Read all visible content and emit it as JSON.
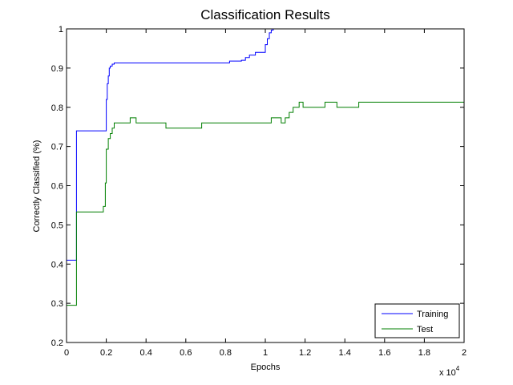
{
  "chart_data": {
    "type": "line",
    "title": "Classification Results",
    "xlabel": "Epochs",
    "ylabel": "Correctly Classified (%)",
    "x_exponent_label": "x 10",
    "x_exponent_power": "4",
    "xlim": [
      0,
      20000
    ],
    "ylim": [
      0.2,
      1
    ],
    "x_ticks": [
      0,
      2000,
      4000,
      6000,
      8000,
      10000,
      12000,
      14000,
      16000,
      18000,
      20000
    ],
    "x_tick_labels": [
      "0",
      "0.2",
      "0.4",
      "0.6",
      "0.8",
      "1",
      "1.2",
      "1.4",
      "1.6",
      "1.8",
      "2"
    ],
    "y_ticks": [
      0.2,
      0.3,
      0.4,
      0.5,
      0.6,
      0.7,
      0.8,
      0.9,
      1
    ],
    "y_tick_labels": [
      "0.2",
      "0.3",
      "0.4",
      "0.5",
      "0.6",
      "0.7",
      "0.8",
      "0.9",
      "1"
    ],
    "grid": false,
    "legend_position": "bottom-right",
    "step": true,
    "series": [
      {
        "name": "Training",
        "color": "#0000ff",
        "x": [
          0,
          500,
          1950,
          2000,
          2050,
          2100,
          2150,
          2200,
          2300,
          2400,
          8200,
          8800,
          9000,
          9200,
          9500,
          10000,
          10100,
          10200,
          10300,
          10400
        ],
        "y": [
          0.41,
          0.74,
          0.74,
          0.82,
          0.86,
          0.88,
          0.9,
          0.905,
          0.91,
          0.913,
          0.918,
          0.92,
          0.927,
          0.933,
          0.94,
          0.96,
          0.975,
          0.99,
          0.997,
          1.0
        ]
      },
      {
        "name": "Test",
        "color": "#007f00",
        "x": [
          0,
          500,
          1850,
          1950,
          2000,
          2100,
          2200,
          2300,
          2400,
          2600,
          3200,
          3500,
          5000,
          6800,
          10300,
          10800,
          11000,
          11200,
          11400,
          11700,
          11900,
          13000,
          13600,
          14700,
          20000
        ],
        "y": [
          0.295,
          0.533,
          0.547,
          0.607,
          0.693,
          0.72,
          0.733,
          0.747,
          0.76,
          0.76,
          0.773,
          0.76,
          0.747,
          0.76,
          0.773,
          0.76,
          0.773,
          0.787,
          0.8,
          0.813,
          0.8,
          0.813,
          0.8,
          0.813,
          0.813
        ]
      }
    ]
  }
}
